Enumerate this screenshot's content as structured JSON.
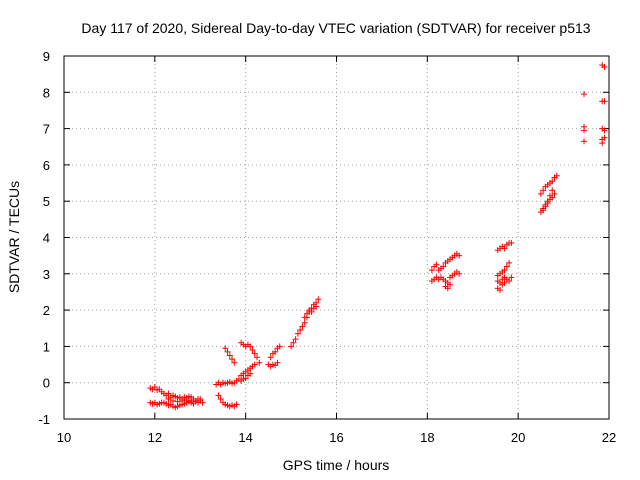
{
  "chart_data": {
    "type": "scatter",
    "title": "Day 117 of 2020, Sidereal Day-to-day VTEC variation (SDTVAR) for receiver p513",
    "xlabel": "GPS time / hours",
    "ylabel": "SDTVAR / TECUs",
    "xlim": [
      10,
      22
    ],
    "ylim": [
      -1,
      9
    ],
    "x_ticks": [
      "10",
      "12",
      "14",
      "16",
      "18",
      "20",
      "22"
    ],
    "y_ticks": [
      "-1",
      "0",
      "1",
      "2",
      "3",
      "4",
      "5",
      "6",
      "7",
      "8",
      "9"
    ],
    "grid": true,
    "legend": "none",
    "marker": "+",
    "marker_color": "#ff0000",
    "series": [
      {
        "points": [
          [
            11.9,
            -0.15
          ],
          [
            11.95,
            -0.18
          ],
          [
            12.0,
            -0.12
          ],
          [
            12.05,
            -0.2
          ],
          [
            12.1,
            -0.18
          ],
          [
            12.15,
            -0.25
          ],
          [
            11.9,
            -0.55
          ],
          [
            11.95,
            -0.58
          ],
          [
            12.0,
            -0.55
          ],
          [
            12.05,
            -0.6
          ],
          [
            12.1,
            -0.58
          ],
          [
            12.15,
            -0.55
          ],
          [
            12.2,
            -0.3
          ],
          [
            12.25,
            -0.35
          ],
          [
            12.3,
            -0.3
          ],
          [
            12.35,
            -0.4
          ],
          [
            12.4,
            -0.35
          ],
          [
            12.45,
            -0.38
          ],
          [
            12.5,
            -0.42
          ],
          [
            12.55,
            -0.4
          ],
          [
            12.6,
            -0.45
          ],
          [
            12.65,
            -0.4
          ],
          [
            12.7,
            -0.42
          ],
          [
            12.75,
            -0.38
          ],
          [
            12.8,
            -0.4
          ],
          [
            12.85,
            -0.45
          ],
          [
            12.9,
            -0.5
          ],
          [
            12.95,
            -0.45
          ],
          [
            13.0,
            -0.5
          ],
          [
            13.05,
            -0.55
          ],
          [
            12.2,
            -0.55
          ],
          [
            12.25,
            -0.58
          ],
          [
            12.3,
            -0.62
          ],
          [
            12.35,
            -0.6
          ],
          [
            12.4,
            -0.65
          ],
          [
            12.45,
            -0.68
          ],
          [
            12.5,
            -0.65
          ],
          [
            12.55,
            -0.62
          ],
          [
            12.6,
            -0.6
          ],
          [
            12.65,
            -0.58
          ],
          [
            12.7,
            -0.55
          ],
          [
            12.75,
            -0.52
          ],
          [
            12.8,
            -0.55
          ],
          [
            12.85,
            -0.58
          ],
          [
            12.9,
            -0.52
          ],
          [
            12.95,
            -0.55
          ],
          [
            13.0,
            -0.45
          ],
          [
            12.3,
            -0.45
          ],
          [
            12.4,
            -0.5
          ],
          [
            12.5,
            -0.52
          ],
          [
            12.6,
            -0.5
          ],
          [
            12.7,
            -0.48
          ],
          [
            12.8,
            -0.5
          ],
          [
            13.35,
            -0.05
          ],
          [
            13.4,
            0.0
          ],
          [
            13.45,
            -0.05
          ],
          [
            13.5,
            0.0
          ],
          [
            13.55,
            -0.02
          ],
          [
            13.6,
            0.0
          ],
          [
            13.65,
            0.02
          ],
          [
            13.7,
            -0.02
          ],
          [
            13.75,
            0.0
          ],
          [
            13.8,
            0.05
          ],
          [
            13.85,
            0.1
          ],
          [
            13.9,
            0.2
          ],
          [
            13.95,
            0.25
          ],
          [
            14.0,
            0.3
          ],
          [
            14.05,
            0.35
          ],
          [
            14.1,
            0.4
          ],
          [
            14.15,
            0.45
          ],
          [
            14.2,
            0.5
          ],
          [
            13.4,
            -0.35
          ],
          [
            13.45,
            -0.45
          ],
          [
            13.5,
            -0.55
          ],
          [
            13.55,
            -0.6
          ],
          [
            13.6,
            -0.62
          ],
          [
            13.65,
            -0.65
          ],
          [
            13.7,
            -0.62
          ],
          [
            13.75,
            -0.65
          ],
          [
            13.8,
            -0.6
          ],
          [
            13.9,
            0.05
          ],
          [
            13.95,
            0.1
          ],
          [
            14.0,
            0.12
          ],
          [
            14.05,
            0.2
          ],
          [
            14.1,
            0.25
          ],
          [
            13.55,
            0.95
          ],
          [
            13.6,
            0.85
          ],
          [
            13.65,
            0.75
          ],
          [
            13.7,
            0.65
          ],
          [
            13.75,
            0.55
          ],
          [
            13.9,
            1.1
          ],
          [
            13.95,
            1.05
          ],
          [
            14.0,
            1.0
          ],
          [
            14.05,
            1.05
          ],
          [
            14.1,
            1.0
          ],
          [
            14.15,
            0.9
          ],
          [
            14.2,
            0.8
          ],
          [
            14.25,
            0.7
          ],
          [
            14.3,
            0.55
          ],
          [
            14.5,
            0.5
          ],
          [
            14.55,
            0.45
          ],
          [
            14.6,
            0.5
          ],
          [
            14.65,
            0.48
          ],
          [
            14.7,
            0.55
          ],
          [
            14.55,
            0.7
          ],
          [
            14.6,
            0.8
          ],
          [
            14.65,
            0.85
          ],
          [
            14.7,
            0.95
          ],
          [
            14.75,
            1.0
          ],
          [
            15.0,
            1.0
          ],
          [
            15.05,
            1.1
          ],
          [
            15.1,
            1.2
          ],
          [
            15.15,
            1.35
          ],
          [
            15.2,
            1.45
          ],
          [
            15.25,
            1.55
          ],
          [
            15.3,
            1.65
          ],
          [
            15.35,
            1.8
          ],
          [
            15.4,
            1.95
          ],
          [
            15.45,
            2.05
          ],
          [
            15.5,
            2.15
          ],
          [
            15.55,
            2.2
          ],
          [
            15.6,
            2.3
          ],
          [
            15.3,
            1.8
          ],
          [
            15.35,
            1.9
          ],
          [
            15.4,
            2.0
          ],
          [
            15.45,
            1.95
          ],
          [
            15.5,
            2.05
          ],
          [
            15.55,
            2.1
          ],
          [
            18.1,
            3.1
          ],
          [
            18.15,
            3.2
          ],
          [
            18.2,
            3.25
          ],
          [
            18.25,
            3.1
          ],
          [
            18.3,
            3.15
          ],
          [
            18.35,
            3.2
          ],
          [
            18.4,
            3.3
          ],
          [
            18.45,
            3.35
          ],
          [
            18.5,
            3.4
          ],
          [
            18.55,
            3.45
          ],
          [
            18.6,
            3.5
          ],
          [
            18.65,
            3.55
          ],
          [
            18.7,
            3.5
          ],
          [
            18.1,
            2.8
          ],
          [
            18.15,
            2.85
          ],
          [
            18.2,
            2.9
          ],
          [
            18.25,
            2.85
          ],
          [
            18.3,
            2.9
          ],
          [
            18.35,
            2.85
          ],
          [
            18.4,
            2.8
          ],
          [
            18.45,
            2.75
          ],
          [
            18.5,
            2.9
          ],
          [
            18.55,
            2.95
          ],
          [
            18.6,
            3.0
          ],
          [
            18.65,
            3.05
          ],
          [
            18.7,
            3.0
          ],
          [
            18.4,
            2.65
          ],
          [
            18.45,
            2.6
          ],
          [
            18.5,
            2.7
          ],
          [
            19.55,
            3.65
          ],
          [
            19.6,
            3.7
          ],
          [
            19.65,
            3.75
          ],
          [
            19.7,
            3.7
          ],
          [
            19.75,
            3.8
          ],
          [
            19.8,
            3.85
          ],
          [
            19.85,
            3.85
          ],
          [
            19.55,
            2.95
          ],
          [
            19.6,
            3.0
          ],
          [
            19.65,
            3.05
          ],
          [
            19.7,
            3.1
          ],
          [
            19.75,
            3.2
          ],
          [
            19.8,
            3.3
          ],
          [
            19.55,
            2.8
          ],
          [
            19.6,
            2.75
          ],
          [
            19.65,
            2.85
          ],
          [
            19.7,
            2.9
          ],
          [
            19.75,
            2.85
          ],
          [
            19.8,
            2.8
          ],
          [
            19.85,
            2.9
          ],
          [
            19.55,
            2.6
          ],
          [
            19.6,
            2.55
          ],
          [
            19.65,
            2.7
          ],
          [
            19.7,
            2.75
          ],
          [
            20.5,
            4.7
          ],
          [
            20.55,
            4.8
          ],
          [
            20.6,
            4.9
          ],
          [
            20.65,
            5.0
          ],
          [
            20.7,
            5.05
          ],
          [
            20.75,
            5.1
          ],
          [
            20.8,
            5.2
          ],
          [
            20.5,
            5.2
          ],
          [
            20.55,
            5.3
          ],
          [
            20.6,
            5.4
          ],
          [
            20.65,
            5.45
          ],
          [
            20.7,
            5.5
          ],
          [
            20.75,
            5.55
          ],
          [
            20.8,
            5.65
          ],
          [
            20.55,
            4.75
          ],
          [
            20.6,
            4.85
          ],
          [
            20.65,
            4.95
          ],
          [
            20.7,
            5.15
          ],
          [
            20.75,
            5.3
          ],
          [
            20.85,
            5.7
          ],
          [
            21.45,
            7.95
          ],
          [
            21.45,
            7.05
          ],
          [
            21.45,
            6.95
          ],
          [
            21.45,
            6.65
          ],
          [
            21.85,
            8.75
          ],
          [
            21.9,
            8.7
          ],
          [
            21.85,
            7.75
          ],
          [
            21.9,
            7.75
          ],
          [
            21.85,
            7.0
          ],
          [
            21.9,
            6.95
          ],
          [
            21.85,
            6.7
          ],
          [
            21.9,
            6.75
          ],
          [
            21.85,
            6.6
          ]
        ]
      }
    ]
  }
}
